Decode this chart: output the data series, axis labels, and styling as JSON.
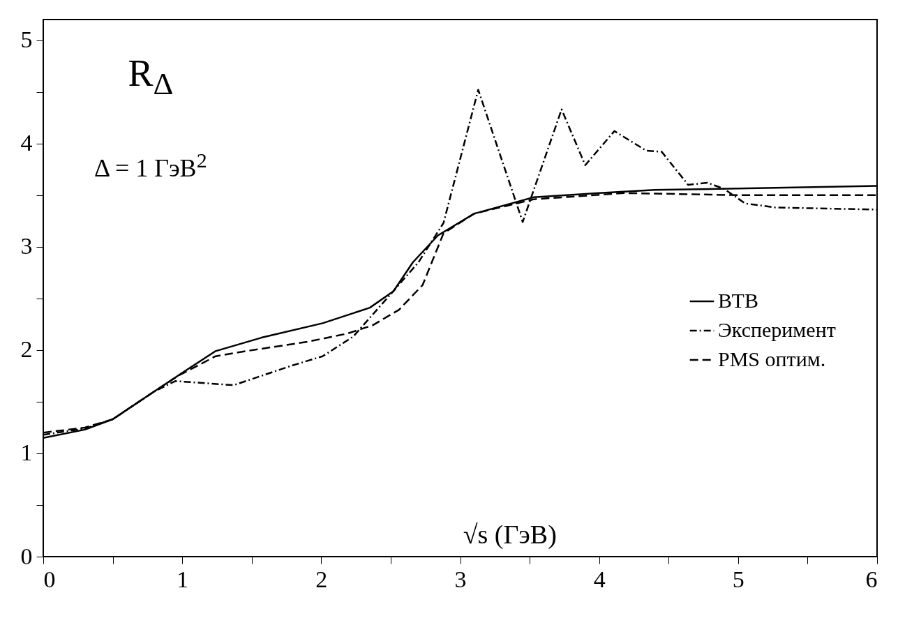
{
  "chart_data": {
    "type": "line",
    "xlabel": "√s (ГэВ)",
    "annotations": [
      "R$_{Δ}$",
      "Δ = 1 ГэВ$^{2}$"
    ],
    "xlim": [
      0,
      6
    ],
    "ylim": [
      0,
      5.2
    ],
    "xticks": [
      0,
      {
        "value": 0.5,
        "label": null
      },
      1,
      {
        "value": 1.5,
        "label": null
      },
      2,
      {
        "value": 2.5,
        "label": null
      },
      3,
      {
        "value": 3.5,
        "label": null
      },
      4,
      {
        "value": 4.5,
        "label": null
      },
      5,
      {
        "value": 5.5,
        "label": null
      },
      6
    ],
    "yticks": [
      0,
      {
        "value": 0.5,
        "label": null
      },
      1,
      {
        "value": 1.5,
        "label": null
      },
      2,
      {
        "value": 2.5,
        "label": null
      },
      3,
      {
        "value": 3.5,
        "label": null
      },
      4,
      {
        "value": 4.5,
        "label": null
      },
      5
    ],
    "legend": "right",
    "grid": false,
    "series": [
      {
        "name": "ВТВ",
        "color": "#000000",
        "line_style": "solid",
        "x": [
          0,
          0.3,
          0.5,
          0.8,
          1.0,
          1.24,
          1.57,
          2.01,
          2.35,
          2.52,
          2.66,
          2.84,
          3.1,
          3.53,
          4.0,
          4.4,
          5.27,
          6.0
        ],
        "values": [
          1.15,
          1.23,
          1.33,
          1.6,
          1.78,
          1.99,
          2.12,
          2.26,
          2.41,
          2.57,
          2.85,
          3.11,
          3.32,
          3.48,
          3.52,
          3.55,
          3.57,
          3.59
        ]
      },
      {
        "name": "Эксперимент",
        "color": "#000000",
        "line_style": "dotted",
        "x": [
          0,
          0.3,
          0.5,
          0.8,
          0.95,
          1.37,
          1.79,
          2.01,
          2.23,
          2.48,
          2.7,
          2.88,
          3.13,
          3.45,
          3.73,
          3.9,
          4.11,
          4.34,
          4.45,
          4.64,
          4.78,
          4.9,
          5.05,
          5.27,
          6.0
        ],
        "values": [
          1.18,
          1.24,
          1.33,
          1.6,
          1.7,
          1.66,
          1.85,
          1.94,
          2.13,
          2.51,
          2.85,
          3.23,
          4.52,
          3.24,
          4.33,
          3.79,
          4.12,
          3.93,
          3.92,
          3.6,
          3.62,
          3.56,
          3.42,
          3.38,
          3.36
        ]
      },
      {
        "name": "PMS оптим.",
        "color": "#000000",
        "line_style": "dashed",
        "x": [
          0,
          0.3,
          0.5,
          0.8,
          0.97,
          1.24,
          1.46,
          1.9,
          2.19,
          2.37,
          2.56,
          2.73,
          2.88,
          3.1,
          3.53,
          4.18,
          5.0,
          6.0
        ],
        "values": [
          1.2,
          1.25,
          1.33,
          1.6,
          1.75,
          1.94,
          1.99,
          2.08,
          2.16,
          2.24,
          2.39,
          2.63,
          3.13,
          3.32,
          3.46,
          3.52,
          3.5,
          3.5
        ]
      }
    ]
  }
}
